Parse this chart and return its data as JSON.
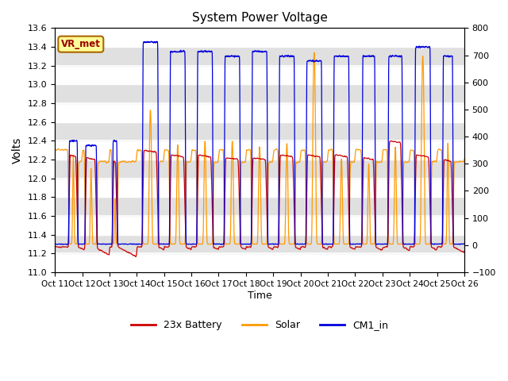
{
  "title": "System Power Voltage",
  "xlabel": "Time",
  "ylabel_left": "Volts",
  "ylim_left": [
    11.0,
    13.6
  ],
  "ylim_right": [
    -100,
    800
  ],
  "background_color": "#ffffff",
  "plot_bg_color": "#e0e0e0",
  "grid_color": "#ffffff",
  "line_colors": {
    "battery": "#cc0000",
    "solar": "#ff9900",
    "cm1": "#0000dd"
  },
  "legend_labels": [
    "23x Battery",
    "Solar",
    "CM1_in"
  ],
  "annotation_text": "VR_met",
  "x_tick_labels": [
    "Oct 11",
    "Oct 12",
    "Oct 13",
    "Oct 14",
    "Oct 15",
    "Oct 16",
    "Oct 17",
    "Oct 18",
    "Oct 19",
    "Oct 20",
    "Oct 21",
    "Oct 22",
    "Oct 23",
    "Oct 24",
    "Oct 25",
    "Oct 26"
  ],
  "figsize": [
    6.4,
    4.8
  ],
  "dpi": 100
}
